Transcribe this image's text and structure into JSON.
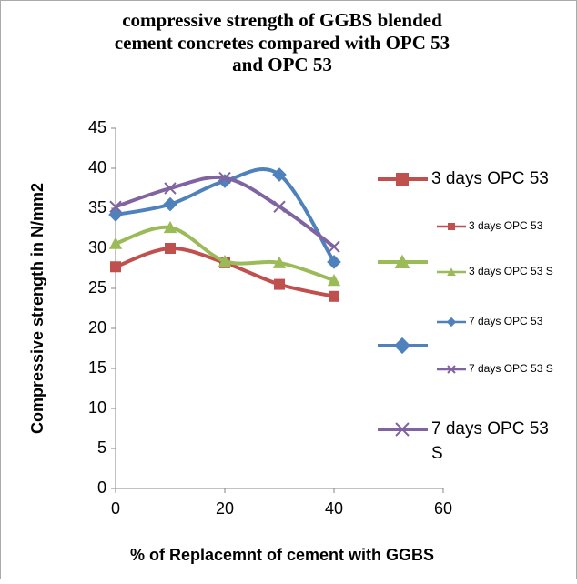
{
  "chart_data": {
    "type": "line",
    "title": [
      "compressive strength of GGBS blended",
      "cement concretes  compared with OPC 53",
      "and OPC 53"
    ],
    "x_label": "% of Replacemnt of  cement with GGBS",
    "y_label": "Compressive strength in  N/mm2",
    "x": [
      0,
      10,
      20,
      30,
      40
    ],
    "series": [
      {
        "name": "3 days OPC 53",
        "color": "#c0504d",
        "marker": "square",
        "values": [
          27.7,
          30,
          28.2,
          25.5,
          24
        ]
      },
      {
        "name": "3 days OPC 53 S",
        "color": "#9bbb59",
        "marker": "triangle",
        "values": [
          30.6,
          32.6,
          28.4,
          28.2,
          26
        ]
      },
      {
        "name": "7 days OPC 53",
        "color": "#4f81bd",
        "marker": "diamond",
        "values": [
          34.2,
          35.5,
          38.4,
          39.2,
          28.3
        ]
      },
      {
        "name": "7 days OPC 53 S",
        "color": "#8064a2",
        "marker": "x",
        "values": [
          35.2,
          37.5,
          38.8,
          35.2,
          30.2
        ]
      }
    ],
    "xlim": [
      0,
      60
    ],
    "xticks": [
      0,
      20,
      40,
      60
    ],
    "ylim": [
      0,
      45
    ],
    "yticks": [
      0,
      5,
      10,
      15,
      20,
      25,
      30,
      35,
      40,
      45
    ],
    "smooth": true
  }
}
